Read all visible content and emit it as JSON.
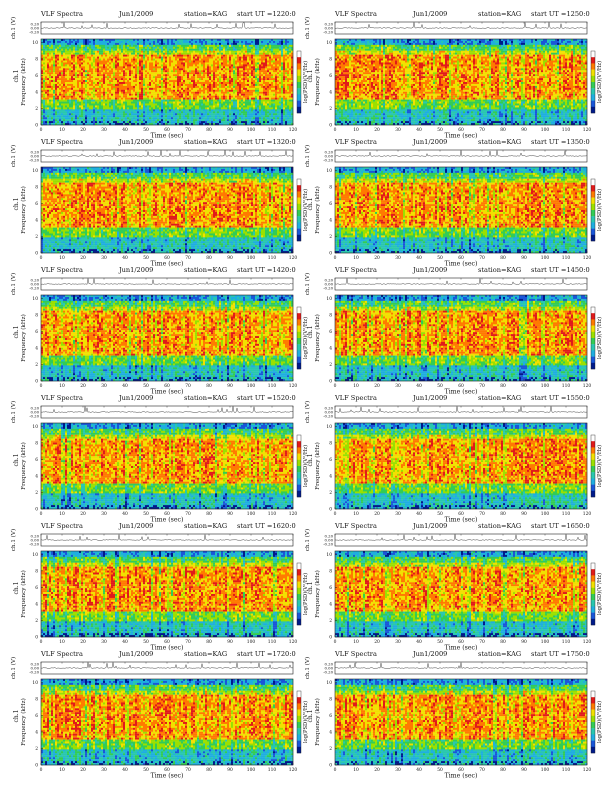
{
  "colors": {
    "background": "#ffffff",
    "frame": "#222222",
    "trace": "#333333",
    "colormap": [
      "#ffffff",
      "#e01a1a",
      "#ff7a00",
      "#f2e000",
      "#9be000",
      "#33cc55",
      "#29c7b0",
      "#1faee0",
      "#1a56d8",
      "#001a8a"
    ]
  },
  "panel_texts": {
    "title_left": "VLF Spectra",
    "xlabel": "Time (sec)",
    "ylabel_top": "ch.1 (V)",
    "ylabel_spec_top": "ch.1",
    "ylabel_spec": "Frequency (kHz)",
    "colorbar_label": "log(PSD)(V²/Hz)"
  },
  "chart_data": [
    {
      "type": "heatmap",
      "panel": "r1c1",
      "title": "VLF Spectra",
      "date": "Jun1/2009",
      "station": "station=KAG",
      "start": "start UT =1220:0",
      "xlabel": "Time (sec)",
      "ylabel": "Frequency (kHz)",
      "x_range": [
        0,
        120
      ],
      "y_range": [
        0,
        10
      ],
      "x_ticks": [
        "0",
        "10",
        "20",
        "30",
        "40",
        "50",
        "60",
        "70",
        "80",
        "90",
        "100",
        "110",
        "120"
      ],
      "y_ticks": [
        "0",
        "2",
        "4",
        "6",
        "8",
        "10"
      ],
      "trace_ticks": [
        "0.20",
        "0.00",
        "-0.20"
      ],
      "intensity_note": "high power (red) approx 3–8.5 kHz; cyan/green below 2 kHz and above 9.5 kHz"
    },
    {
      "type": "heatmap",
      "panel": "r1c2",
      "title": "VLF Spectra",
      "date": "Jun1/2009",
      "station": "station=KAG",
      "start": "start UT =1250:0",
      "xlabel": "Time (sec)",
      "ylabel": "Frequency (kHz)",
      "x_range": [
        0,
        120
      ],
      "y_range": [
        0,
        10
      ],
      "x_ticks": [
        "0",
        "10",
        "20",
        "30",
        "40",
        "50",
        "60",
        "70",
        "80",
        "90",
        "100",
        "110",
        "120"
      ],
      "y_ticks": [
        "0",
        "2",
        "4",
        "6",
        "8",
        "10"
      ],
      "trace_ticks": [
        "0.20",
        "0.00",
        "-0.20"
      ]
    },
    {
      "type": "heatmap",
      "panel": "r2c1",
      "title": "VLF Spectra",
      "date": "Jun1/2009",
      "station": "station=KAG",
      "start": "start UT =1320:0",
      "xlabel": "Time (sec)",
      "ylabel": "Frequency (kHz)",
      "x_range": [
        0,
        120
      ],
      "y_range": [
        0,
        10
      ],
      "x_ticks": [
        "0",
        "10",
        "20",
        "30",
        "40",
        "50",
        "60",
        "70",
        "80",
        "90",
        "100",
        "110",
        "120"
      ],
      "y_ticks": [
        "0",
        "2",
        "4",
        "6",
        "8",
        "10"
      ],
      "trace_ticks": [
        "0.20",
        "0.00",
        "-0.20"
      ]
    },
    {
      "type": "heatmap",
      "panel": "r2c2",
      "title": "VLF Spectra",
      "date": "Jun1/2009",
      "station": "station=KAG",
      "start": "start UT =1350:0",
      "xlabel": "Time (sec)",
      "ylabel": "Frequency (kHz)",
      "x_range": [
        0,
        120
      ],
      "y_range": [
        0,
        10
      ],
      "x_ticks": [
        "0",
        "10",
        "20",
        "30",
        "40",
        "50",
        "60",
        "70",
        "80",
        "90",
        "100",
        "110",
        "120"
      ],
      "y_ticks": [
        "0",
        "2",
        "4",
        "6",
        "8",
        "10"
      ],
      "trace_ticks": [
        "0.20",
        "0.00",
        "-0.20"
      ]
    },
    {
      "type": "heatmap",
      "panel": "r3c1",
      "title": "VLF Spectra",
      "date": "Jun1/2009",
      "station": "station=KAG",
      "start": "start UT =1420:0",
      "xlabel": "Time (sec)",
      "ylabel": "Frequency (kHz)",
      "x_range": [
        0,
        120
      ],
      "y_range": [
        0,
        10
      ],
      "x_ticks": [
        "0",
        "10",
        "20",
        "30",
        "40",
        "50",
        "60",
        "70",
        "80",
        "90",
        "100",
        "110",
        "120"
      ],
      "y_ticks": [
        "0",
        "2",
        "4",
        "6",
        "8",
        "10"
      ],
      "trace_ticks": [
        "0.20",
        "0.00",
        "-0.20"
      ]
    },
    {
      "type": "heatmap",
      "panel": "r3c2",
      "title": "VLF Spectra",
      "date": "Jun1/2009",
      "station": "station=KAG",
      "start": "start UT =1450:0",
      "xlabel": "Time (sec)",
      "ylabel": "Frequency (kHz)",
      "x_range": [
        0,
        120
      ],
      "y_range": [
        0,
        10
      ],
      "x_ticks": [
        "0",
        "10",
        "20",
        "30",
        "40",
        "50",
        "60",
        "70",
        "80",
        "90",
        "100",
        "110",
        "120"
      ],
      "y_ticks": [
        "0",
        "2",
        "4",
        "6",
        "8",
        "10"
      ],
      "trace_ticks": [
        "0.20",
        "0.00",
        "-0.20"
      ]
    },
    {
      "type": "heatmap",
      "panel": "r4c1",
      "title": "VLF Spectra",
      "date": "Jun1/2009",
      "station": "station=KAG",
      "start": "start UT =1520:0",
      "xlabel": "Time (sec)",
      "ylabel": "Frequency (kHz)",
      "x_range": [
        0,
        120
      ],
      "y_range": [
        0,
        10
      ],
      "x_ticks": [
        "0",
        "10",
        "20",
        "30",
        "40",
        "50",
        "60",
        "70",
        "80",
        "90",
        "100",
        "110",
        "120"
      ],
      "y_ticks": [
        "0",
        "2",
        "4",
        "6",
        "8",
        "10"
      ],
      "trace_ticks": [
        "0.20",
        "0.00",
        "-0.20"
      ]
    },
    {
      "type": "heatmap",
      "panel": "r4c2",
      "title": "VLF Spectra",
      "date": "Jun1/2009",
      "station": "station=KAG",
      "start": "start UT =1550:0",
      "xlabel": "Time (sec)",
      "ylabel": "Frequency (kHz)",
      "x_range": [
        0,
        120
      ],
      "y_range": [
        0,
        10
      ],
      "x_ticks": [
        "0",
        "10",
        "20",
        "30",
        "40",
        "50",
        "60",
        "70",
        "80",
        "90",
        "100",
        "110",
        "120"
      ],
      "y_ticks": [
        "0",
        "2",
        "4",
        "6",
        "8",
        "10"
      ],
      "trace_ticks": [
        "0.20",
        "0.00",
        "-0.20"
      ]
    },
    {
      "type": "heatmap",
      "panel": "r5c1",
      "title": "VLF Spectra",
      "date": "Jun1/2009",
      "station": "station=KAG",
      "start": "start UT =1620:0",
      "xlabel": "Time (sec)",
      "ylabel": "Frequency (kHz)",
      "x_range": [
        0,
        120
      ],
      "y_range": [
        0,
        10
      ],
      "x_ticks": [
        "0",
        "10",
        "20",
        "30",
        "40",
        "50",
        "60",
        "70",
        "80",
        "90",
        "100",
        "110",
        "120"
      ],
      "y_ticks": [
        "0",
        "2",
        "4",
        "6",
        "8",
        "10"
      ],
      "trace_ticks": [
        "0.20",
        "0.00",
        "-0.20"
      ]
    },
    {
      "type": "heatmap",
      "panel": "r5c2",
      "title": "VLF Spectra",
      "date": "Jun1/2009",
      "station": "station=KAG",
      "start": "start UT =1650:0",
      "xlabel": "Time (sec)",
      "ylabel": "Frequency (kHz)",
      "x_range": [
        0,
        120
      ],
      "y_range": [
        0,
        10
      ],
      "x_ticks": [
        "0",
        "10",
        "20",
        "30",
        "40",
        "50",
        "60",
        "70",
        "80",
        "90",
        "100",
        "110",
        "120"
      ],
      "y_ticks": [
        "0",
        "2",
        "4",
        "6",
        "8",
        "10"
      ],
      "trace_ticks": [
        "0.20",
        "0.00",
        "-0.20"
      ]
    },
    {
      "type": "heatmap",
      "panel": "r6c1",
      "title": "VLF Spectra",
      "date": "Jun1/2009",
      "station": "station=KAG",
      "start": "start UT =1720:0",
      "xlabel": "Time (sec)",
      "ylabel": "Frequency (kHz)",
      "x_range": [
        0,
        120
      ],
      "y_range": [
        0,
        10
      ],
      "x_ticks": [
        "0",
        "10",
        "20",
        "30",
        "40",
        "50",
        "60",
        "70",
        "80",
        "90",
        "100",
        "110",
        "120"
      ],
      "y_ticks": [
        "0",
        "2",
        "4",
        "6",
        "8",
        "10"
      ],
      "trace_ticks": [
        "0.20",
        "0.00",
        "-0.20"
      ]
    },
    {
      "type": "heatmap",
      "panel": "r6c2",
      "title": "VLF Spectra",
      "date": "Jun1/2009",
      "station": "station=KAG",
      "start": "start UT =1750:0",
      "xlabel": "Time (sec)",
      "ylabel": "Frequency (kHz)",
      "x_range": [
        0,
        120
      ],
      "y_range": [
        0,
        10
      ],
      "x_ticks": [
        "0",
        "10",
        "20",
        "30",
        "40",
        "50",
        "60",
        "70",
        "80",
        "90",
        "100",
        "110",
        "120"
      ],
      "y_ticks": [
        "0",
        "2",
        "4",
        "6",
        "8",
        "10"
      ],
      "trace_ticks": [
        "0.20",
        "0.00",
        "-0.20"
      ]
    }
  ]
}
